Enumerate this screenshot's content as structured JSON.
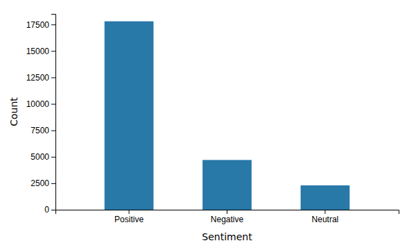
{
  "chart_data": {
    "type": "bar",
    "categories": [
      "Positive",
      "Negative",
      "Neutral"
    ],
    "values": [
      17800,
      4700,
      2300
    ],
    "color": "#2878a8",
    "xlabel": "Sentiment",
    "ylabel": "Count",
    "ylim": [
      0,
      18500
    ],
    "yticks": [
      0,
      2500,
      5000,
      7500,
      10000,
      12500,
      15000,
      17500
    ],
    "grid": false
  }
}
